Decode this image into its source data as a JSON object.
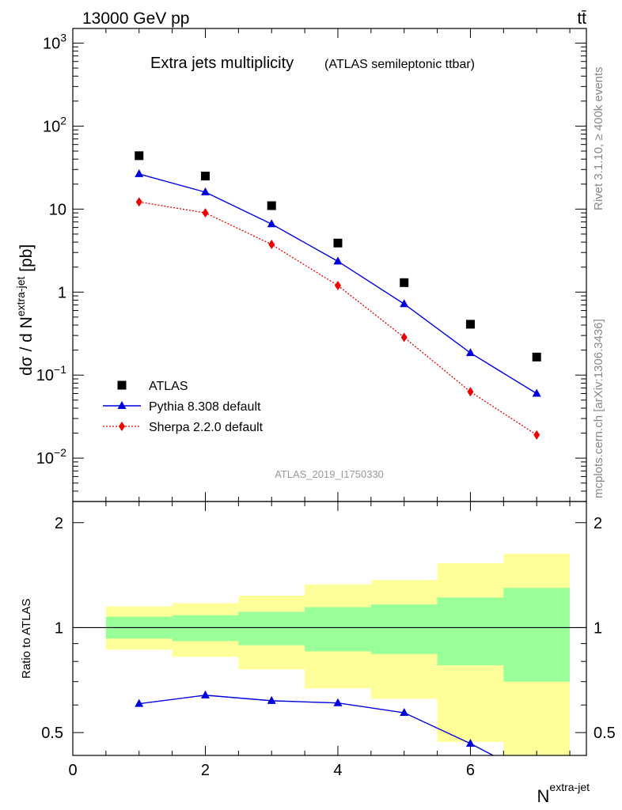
{
  "header": {
    "left": "13000 GeV pp",
    "right": "tt̄"
  },
  "side_labels": {
    "top": "Rivet 3.1.10, ≥ 400k events",
    "bottom": "mcplots.cern.ch [arXiv:1306.3436]"
  },
  "colors": {
    "atlas": "#000000",
    "pythia": "#0000dd",
    "sherpa": "#ee0000",
    "band_outer": "#ffff99",
    "band_inner": "#99ff99"
  },
  "chart_data": [
    {
      "type": "scatter",
      "panel": "main",
      "title": "Extra jets multiplicity",
      "subtitle": "(ATLAS semileptonic ttbar)",
      "ylabel": "dσ / d N^extra-jet [pb]",
      "xlabel": "",
      "yscale": "log",
      "ylim": [
        0.003,
        1500
      ],
      "xlim": [
        0,
        7.75
      ],
      "x_ticks": [
        0,
        2,
        4,
        6
      ],
      "y_tick_labels": [
        {
          "v": 1000,
          "base": "10",
          "exp": "3"
        },
        {
          "v": 100,
          "base": "10",
          "exp": "2"
        },
        {
          "v": 10,
          "base": "10",
          "exp": ""
        },
        {
          "v": 1,
          "base": "1",
          "exp": ""
        },
        {
          "v": 0.1,
          "base": "10",
          "exp": "−1"
        },
        {
          "v": 0.01,
          "base": "10",
          "exp": "−2"
        }
      ],
      "analysis_tag": "ATLAS_2019_I1750330",
      "legend_position": "bottom-left",
      "x": [
        1,
        2,
        3,
        4,
        5,
        6,
        7
      ],
      "series": [
        {
          "name": "ATLAS",
          "marker": "square",
          "values": [
            44,
            25,
            11,
            3.9,
            1.3,
            0.41,
            0.165
          ]
        },
        {
          "name": "Pythia 8.308 default",
          "marker": "triangle",
          "line": "solid",
          "values": [
            26.5,
            16,
            6.6,
            2.35,
            0.72,
            0.185,
            0.06
          ]
        },
        {
          "name": "Sherpa 2.2.0 default",
          "marker": "diamond",
          "line": "dotted",
          "values": [
            12.2,
            9.0,
            3.75,
            1.2,
            0.285,
            0.063,
            0.019
          ]
        }
      ]
    },
    {
      "type": "line",
      "panel": "ratio",
      "ylabel": "Ratio to ATLAS",
      "xlabel": "N^extra-jet",
      "yscale": "log",
      "ylim": [
        0.43,
        2.3
      ],
      "xlim": [
        0,
        7.75
      ],
      "x_ticks": [
        0,
        2,
        4,
        6
      ],
      "y_ticks": [
        0.5,
        1,
        2
      ],
      "bin_edges": [
        0.5,
        1.5,
        2.5,
        3.5,
        4.5,
        5.5,
        6.5,
        7.5
      ],
      "band_inner": [
        [
          0.93,
          1.075
        ],
        [
          0.915,
          1.085
        ],
        [
          0.89,
          1.11
        ],
        [
          0.855,
          1.145
        ],
        [
          0.84,
          1.165
        ],
        [
          0.78,
          1.22
        ],
        [
          0.7,
          1.3
        ]
      ],
      "band_outer": [
        [
          0.865,
          1.15
        ],
        [
          0.825,
          1.175
        ],
        [
          0.76,
          1.235
        ],
        [
          0.67,
          1.33
        ],
        [
          0.625,
          1.37
        ],
        [
          0.47,
          1.53
        ],
        [
          0.37,
          1.63
        ]
      ],
      "series": [
        {
          "name": "Pythia 8.308 default",
          "x": [
            1,
            2,
            3,
            4,
            5,
            6,
            7
          ],
          "values": [
            0.605,
            0.64,
            0.617,
            0.608,
            0.57,
            0.465,
            0.37
          ]
        }
      ],
      "reference_line": 1
    }
  ]
}
